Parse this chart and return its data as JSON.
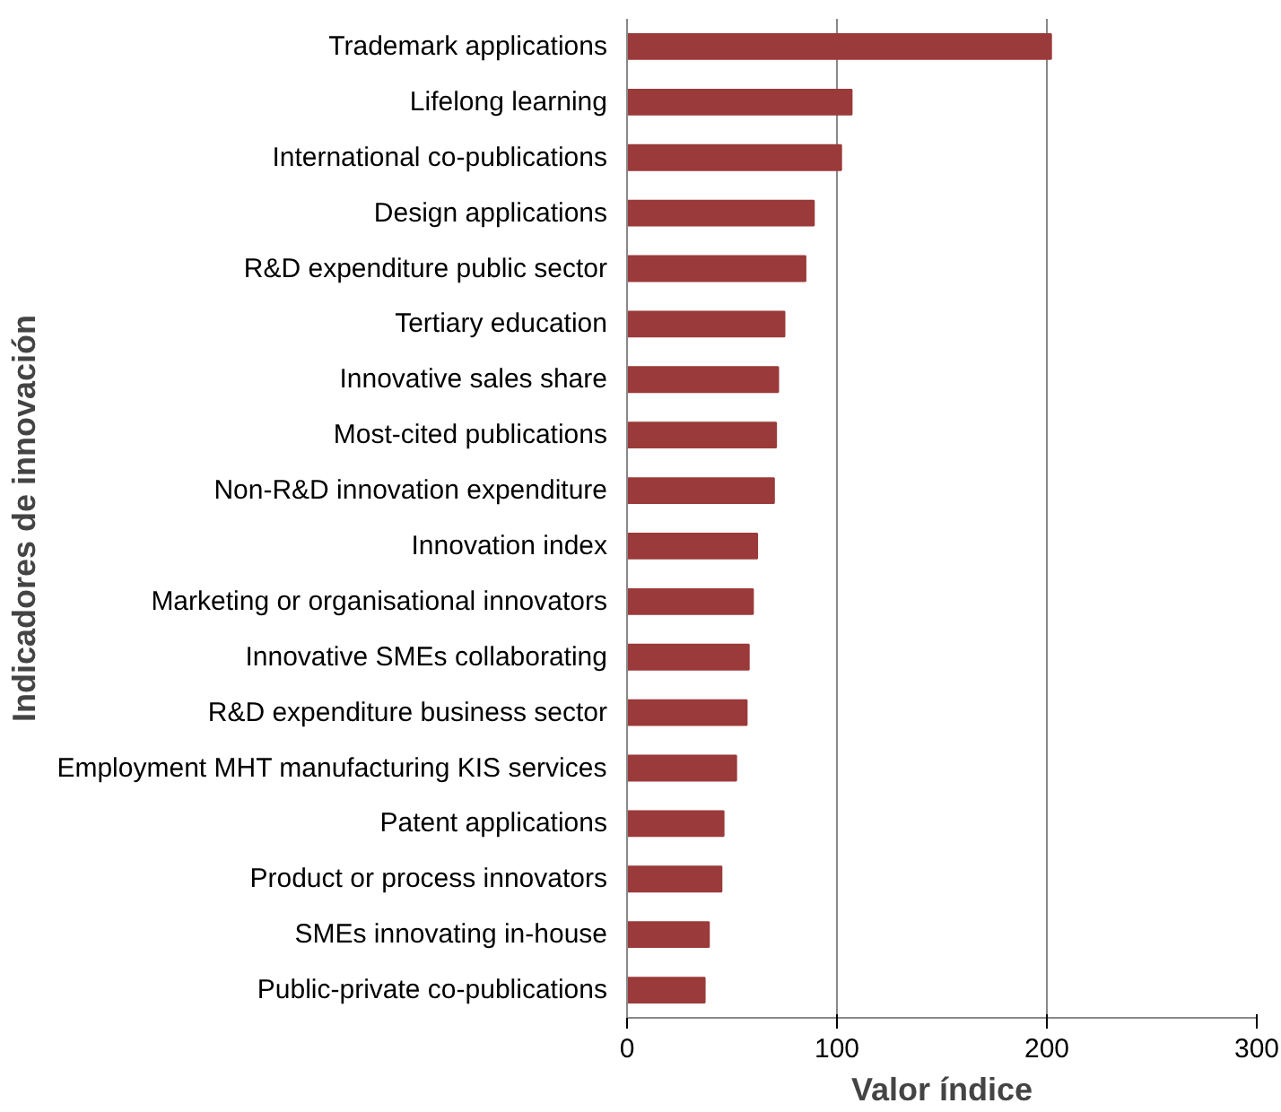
{
  "chart_data": {
    "type": "bar",
    "orientation": "horizontal",
    "xlabel": "Valor índice",
    "ylabel": "Indicadores de innovación",
    "categories": [
      "Trademark applications",
      "Lifelong learning",
      "International co-publications",
      "Design applications",
      "R&D expenditure public sector",
      "Tertiary education",
      "Innovative sales share",
      "Most-cited publications",
      "Non-R&D innovation expenditure",
      "Innovation index",
      "Marketing or organisational innovators",
      "Innovative SMEs collaborating",
      "R&D expenditure business sector",
      "Employment MHT manufacturing KIS services",
      "Patent applications",
      "Product or process innovators",
      "SMEs innovating in-house",
      "Public-private co-publications"
    ],
    "values": [
      202,
      107,
      102,
      89,
      85,
      75,
      72,
      71,
      70,
      62,
      60,
      58,
      57,
      52,
      46,
      45,
      39,
      37
    ],
    "color": "#9b3a3a",
    "xlim": [
      0,
      300
    ],
    "xticks": [
      0,
      100,
      200,
      300
    ],
    "grid": "x"
  }
}
